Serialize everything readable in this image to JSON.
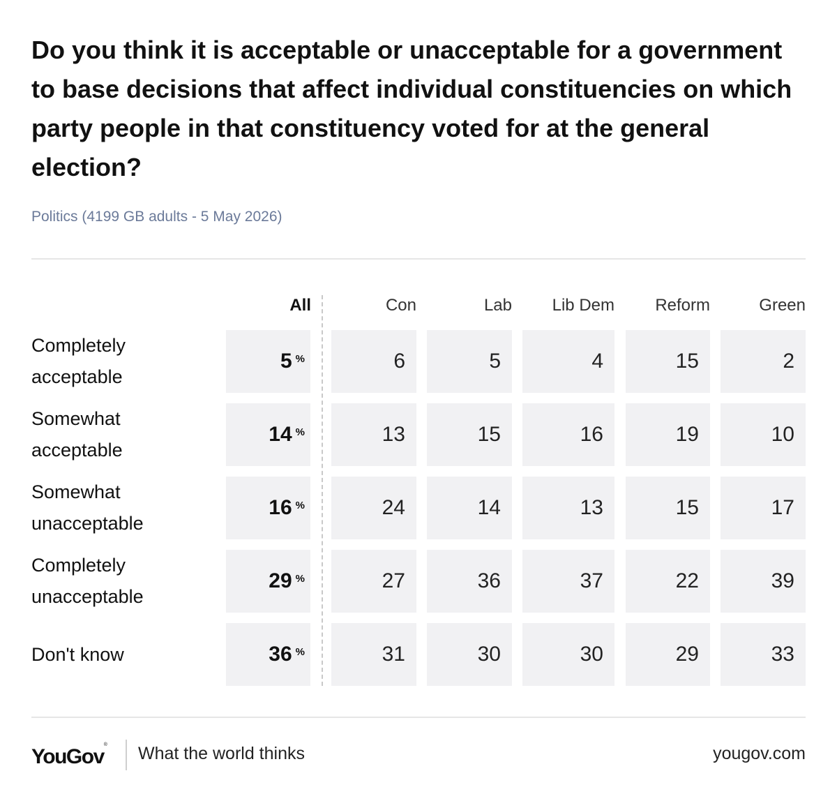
{
  "title": "Do you think it is acceptable or unacceptable for a government to base decisions that affect individual constituencies on which party people in that constituency voted for at the general election?",
  "subtitle": "Politics (4199 GB adults - 5 May 2026)",
  "chart_data": {
    "type": "table",
    "title": "Do you think it is acceptable or unacceptable for a government to base decisions that affect individual constituencies on which party people in that constituency voted for at the general election?",
    "columns": [
      "All",
      "Con",
      "Lab",
      "Lib Dem",
      "Reform",
      "Green"
    ],
    "unit": "%",
    "rows": [
      {
        "label": "Completely acceptable",
        "values": [
          5,
          6,
          5,
          4,
          15,
          2
        ]
      },
      {
        "label": "Somewhat acceptable",
        "values": [
          14,
          13,
          15,
          16,
          19,
          10
        ]
      },
      {
        "label": "Somewhat unacceptable",
        "values": [
          16,
          24,
          14,
          13,
          15,
          17
        ]
      },
      {
        "label": "Completely unacceptable",
        "values": [
          29,
          27,
          36,
          37,
          22,
          39
        ]
      },
      {
        "label": "Don't know",
        "values": [
          36,
          31,
          30,
          30,
          29,
          33
        ]
      }
    ]
  },
  "footer": {
    "logo": "YouGov",
    "logo_mark": "®",
    "tagline": "What the world thinks",
    "url": "yougov.com"
  }
}
